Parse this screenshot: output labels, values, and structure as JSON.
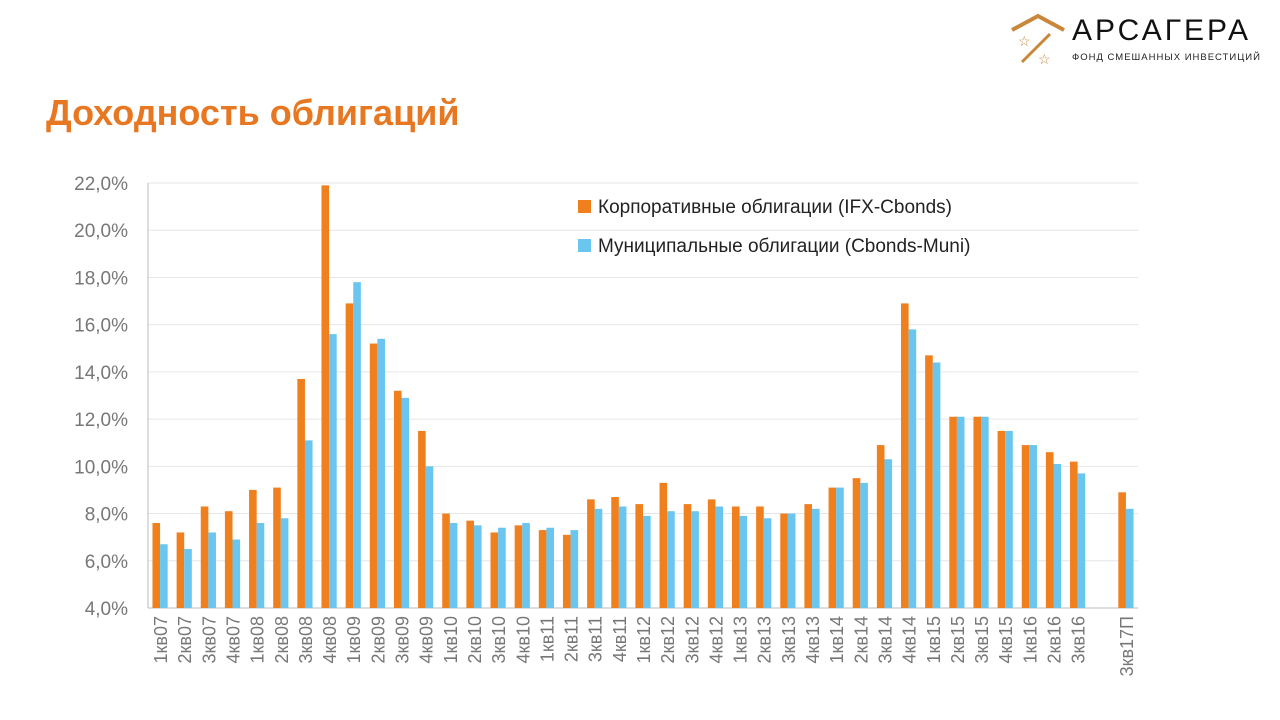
{
  "title": "Доходность облигаций",
  "logo": {
    "name": "АРСАГЕРА",
    "subtitle": "ФОНД СМЕШАННЫХ ИНВЕСТИЦИЙ"
  },
  "chart_data": {
    "type": "bar",
    "title": "Доходность облигаций",
    "xlabel": "",
    "ylabel": "",
    "ylim": [
      4,
      22
    ],
    "yticks": [
      "4,0%",
      "6,0%",
      "8,0%",
      "10,0%",
      "12,0%",
      "14,0%",
      "16,0%",
      "18,0%",
      "20,0%",
      "22,0%"
    ],
    "grid": true,
    "legend_position": "top-right",
    "categories": [
      "1кв07",
      "2кв07",
      "3кв07",
      "4кв07",
      "1кв08",
      "2кв08",
      "3кв08",
      "4кв08",
      "1кв09",
      "2кв09",
      "3кв09",
      "4кв09",
      "1кв10",
      "2кв10",
      "3кв10",
      "4кв10",
      "1кв11",
      "2кв11",
      "3кв11",
      "4кв11",
      "1кв12",
      "2кв12",
      "3кв12",
      "4кв12",
      "1кв13",
      "2кв13",
      "3кв13",
      "4кв13",
      "1кв14",
      "2кв14",
      "3кв14",
      "4кв14",
      "1кв15",
      "2кв15",
      "3кв15",
      "4кв15",
      "1кв16",
      "2кв16",
      "3кв16",
      "",
      "3кв17П"
    ],
    "series": [
      {
        "name": "Корпоративные облигации (IFX-Cbonds)",
        "color": "#f07f1e",
        "values": [
          7.6,
          7.2,
          8.3,
          8.1,
          9.0,
          9.1,
          13.7,
          21.9,
          16.9,
          15.2,
          13.2,
          11.5,
          8.0,
          7.7,
          7.2,
          7.5,
          7.3,
          7.1,
          8.6,
          8.7,
          8.4,
          9.3,
          8.4,
          8.6,
          8.3,
          8.3,
          8.0,
          8.4,
          9.1,
          9.5,
          10.9,
          16.9,
          14.7,
          12.1,
          12.1,
          11.5,
          10.9,
          10.6,
          10.2,
          null,
          8.9
        ]
      },
      {
        "name": "Муниципальные облигации (Cbonds-Muni)",
        "color": "#6ac6ef",
        "values": [
          6.7,
          6.5,
          7.2,
          6.9,
          7.6,
          7.8,
          11.1,
          15.6,
          17.8,
          15.4,
          12.9,
          10.0,
          7.6,
          7.5,
          7.4,
          7.6,
          7.4,
          7.3,
          8.2,
          8.3,
          7.9,
          8.1,
          8.1,
          8.3,
          7.9,
          7.8,
          8.0,
          8.2,
          9.1,
          9.3,
          10.3,
          15.8,
          14.4,
          12.1,
          12.1,
          11.5,
          10.9,
          10.1,
          9.7,
          null,
          8.2
        ]
      }
    ]
  }
}
